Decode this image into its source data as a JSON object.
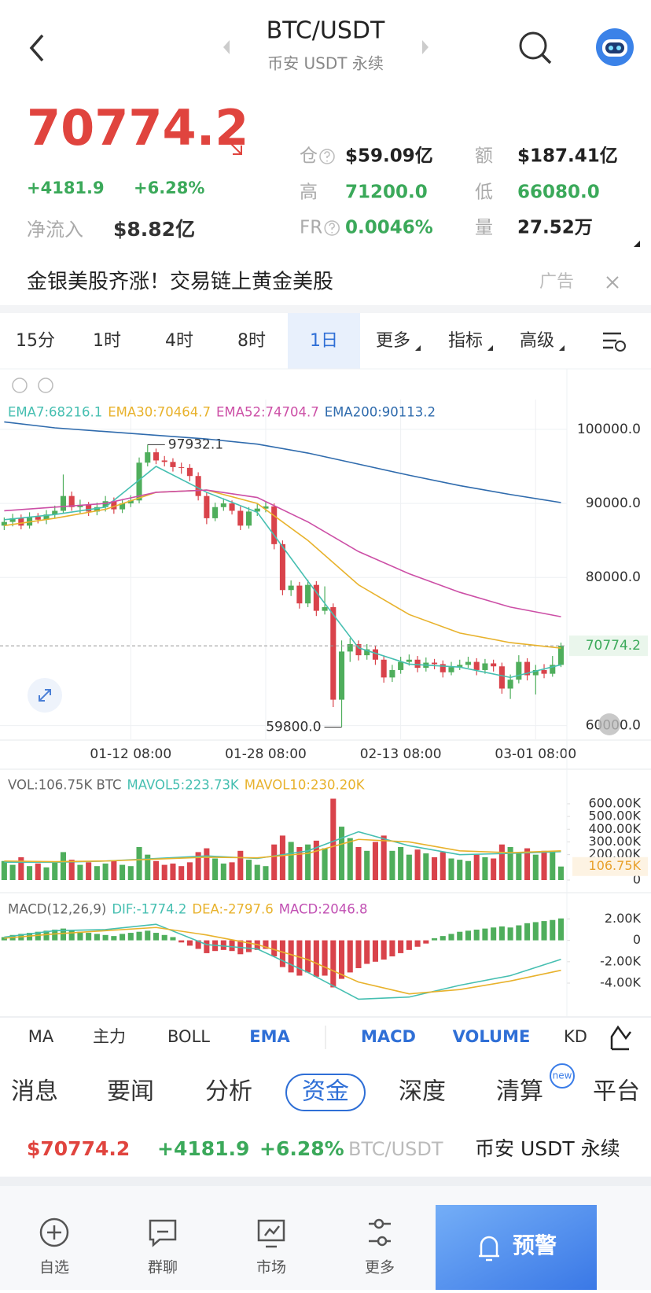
{
  "header": {
    "title": "BTC/USDT",
    "subtitle": "币安 USDT 永续"
  },
  "ticker": {
    "price": "70774.2",
    "change": "+4181.9",
    "change_pct": "+6.28%",
    "netflow_label": "净流入",
    "netflow": "$8.82亿",
    "stats": [
      {
        "label": "仓",
        "value": "$59.09亿",
        "color": "#222",
        "info_icon": true
      },
      {
        "label": "额",
        "value": "$187.41亿",
        "color": "#222"
      },
      {
        "label": "高",
        "value": "71200.0",
        "color": "#3ba95a"
      },
      {
        "label": "低",
        "value": "66080.0",
        "color": "#3ba95a"
      },
      {
        "label": "FR",
        "value": "0.0046%",
        "color": "#3ba95a",
        "info_icon": true
      },
      {
        "label": "量",
        "value": "27.52万",
        "color": "#222"
      }
    ]
  },
  "banner": {
    "text": "金银美股齐涨！交易链上黄金美股",
    "tag": "广告"
  },
  "intervals": [
    "15分",
    "1时",
    "4时",
    "8时",
    "1日",
    "更多",
    "指标",
    "高级"
  ],
  "active_interval": 4,
  "chart_data": [
    {
      "type": "candlestick",
      "up_color": "#4fae5c",
      "down_color": "#d9434b",
      "xlim": [
        -0.5,
        66.7
      ],
      "ylim": [
        58150,
        101900
      ],
      "yticks": [
        {
          "value": 100000,
          "label": "100000.0"
        },
        {
          "value": 90000,
          "label": "90000.0"
        },
        {
          "value": 80000,
          "label": "80000.0"
        },
        {
          "value": 60000,
          "label": "60000.0"
        }
      ],
      "xticks": [
        {
          "value": 15,
          "label": "01-12 08:00"
        },
        {
          "value": 31,
          "label": "01-28 08:00"
        },
        {
          "value": 47,
          "label": "02-13 08:00"
        },
        {
          "value": 63,
          "label": "03-01 08:00"
        }
      ],
      "last_price": 70774.2,
      "last_price_label": "70774.2",
      "annotations": [
        {
          "index": 17,
          "value": 97932.1,
          "label": "97932.1"
        },
        {
          "index": 40,
          "value": 59800,
          "label": "59800.0"
        }
      ],
      "candles": [
        [
          87000,
          88100,
          86400,
          87500
        ],
        [
          87500,
          88600,
          86900,
          88000
        ],
        [
          88000,
          88500,
          86500,
          87000
        ],
        [
          87000,
          88800,
          86600,
          88200
        ],
        [
          88200,
          88700,
          87300,
          87800
        ],
        [
          87800,
          89100,
          87200,
          88500
        ],
        [
          88500,
          89700,
          88000,
          89000
        ],
        [
          89000,
          93900,
          88600,
          91000
        ],
        [
          91000,
          91600,
          89000,
          89500
        ],
        [
          89500,
          90500,
          88700,
          89800
        ],
        [
          89800,
          90200,
          88300,
          88900
        ],
        [
          88900,
          90100,
          88400,
          89500
        ],
        [
          89500,
          91000,
          88900,
          90300
        ],
        [
          90300,
          90800,
          88600,
          89200
        ],
        [
          89200,
          90600,
          88700,
          90000
        ],
        [
          90000,
          91100,
          89500,
          90400
        ],
        [
          90400,
          96200,
          90000,
          95500
        ],
        [
          95500,
          97932.1,
          95000,
          96900
        ],
        [
          96900,
          97400,
          95300,
          95800
        ],
        [
          95800,
          96400,
          95000,
          95600
        ],
        [
          95600,
          96100,
          94300,
          94900
        ],
        [
          94900,
          95500,
          94000,
          94800
        ],
        [
          94800,
          95300,
          93000,
          93700
        ],
        [
          93700,
          94200,
          90400,
          91000
        ],
        [
          91000,
          91500,
          87200,
          88000
        ],
        [
          88000,
          90100,
          87600,
          89500
        ],
        [
          89500,
          90700,
          89000,
          90000
        ],
        [
          90000,
          90400,
          88500,
          89000
        ],
        [
          89000,
          89600,
          86400,
          87000
        ],
        [
          87000,
          89500,
          86600,
          88900
        ],
        [
          88900,
          90000,
          88300,
          89300
        ],
        [
          89300,
          90200,
          88800,
          89600
        ],
        [
          89600,
          90000,
          83800,
          84500
        ],
        [
          84500,
          85000,
          77600,
          78300
        ],
        [
          78300,
          79600,
          77500,
          78900
        ],
        [
          78900,
          79400,
          75800,
          76500
        ],
        [
          76500,
          79700,
          76000,
          79000
        ],
        [
          79000,
          79500,
          74800,
          75500
        ],
        [
          75500,
          78800,
          75000,
          76000
        ],
        [
          76000,
          76500,
          62500,
          63500
        ],
        [
          63500,
          71500,
          59800,
          70000
        ],
        [
          70000,
          71800,
          68600,
          71000
        ],
        [
          71000,
          71500,
          68800,
          69500
        ],
        [
          69500,
          71000,
          68900,
          70300
        ],
        [
          70300,
          70800,
          68200,
          68900
        ],
        [
          68900,
          69400,
          65800,
          66500
        ],
        [
          66500,
          68200,
          65900,
          67500
        ],
        [
          67500,
          69300,
          67000,
          68600
        ],
        [
          68600,
          69600,
          68100,
          68900
        ],
        [
          68900,
          69400,
          67200,
          67800
        ],
        [
          67800,
          69200,
          67300,
          68500
        ],
        [
          68500,
          69000,
          67600,
          68300
        ],
        [
          68300,
          68800,
          66500,
          67200
        ],
        [
          67200,
          68600,
          66800,
          67900
        ],
        [
          67900,
          68900,
          67500,
          68200
        ],
        [
          68200,
          69300,
          67800,
          68600
        ],
        [
          68600,
          69100,
          66800,
          67500
        ],
        [
          67500,
          69000,
          67000,
          68400
        ],
        [
          68400,
          68900,
          67300,
          68000
        ],
        [
          68000,
          68500,
          64300,
          65000
        ],
        [
          65000,
          66900,
          63600,
          66200
        ],
        [
          66200,
          69500,
          65700,
          68600
        ],
        [
          68600,
          69100,
          66100,
          66800
        ],
        [
          66800,
          68200,
          64200,
          67500
        ],
        [
          67500,
          68300,
          66400,
          67000
        ],
        [
          67000,
          69400,
          66600,
          68200
        ],
        [
          68200,
          71200,
          67900,
          70774.2
        ]
      ],
      "series": [
        {
          "name": "EMA7:68216.1",
          "color": "#46bfb1",
          "x": [
            0,
            6,
            12,
            18,
            24,
            30,
            36,
            42,
            48,
            54,
            60,
            66
          ],
          "values": [
            87800,
            88500,
            89500,
            95000,
            91500,
            88800,
            79500,
            70500,
            68300,
            67900,
            66500,
            68216.1
          ]
        },
        {
          "name": "EMA30:70464.7",
          "color": "#e8b22c",
          "x": [
            0,
            6,
            12,
            18,
            24,
            30,
            36,
            42,
            48,
            54,
            60,
            66
          ],
          "values": [
            87000,
            88000,
            89200,
            91500,
            91800,
            90000,
            85000,
            79000,
            75000,
            72500,
            71200,
            70464.7
          ]
        },
        {
          "name": "EMA52:74704.7",
          "color": "#cc4fa6",
          "x": [
            0,
            6,
            12,
            18,
            24,
            30,
            36,
            42,
            48,
            54,
            60,
            66
          ],
          "values": [
            89000,
            89500,
            90000,
            91500,
            91800,
            90800,
            87500,
            83500,
            80500,
            78000,
            76000,
            74704.7
          ]
        },
        {
          "name": "EMA200:90113.2",
          "color": "#2f6bad",
          "x": [
            0,
            6,
            12,
            18,
            24,
            30,
            36,
            42,
            48,
            54,
            60,
            66
          ],
          "values": [
            101000,
            100200,
            99700,
            99200,
            98700,
            98000,
            96800,
            95300,
            93800,
            92400,
            91200,
            90113.2
          ]
        }
      ]
    },
    {
      "type": "bar",
      "title": "VOL:106.75K BTC",
      "xlim": [
        -0.5,
        66.7
      ],
      "ylim": [
        0,
        674000
      ],
      "yticks": [
        0,
        {
          "value": 200000,
          "label": "200.00K"
        },
        {
          "value": 300000,
          "label": "300.00K"
        },
        {
          "value": 400000,
          "label": "400.00K"
        },
        {
          "value": 500000,
          "label": "500.00K"
        },
        {
          "value": 600000,
          "label": "600.00K"
        }
      ],
      "last_value_label": "106.75K",
      "values": [
        150000,
        120000,
        180000,
        110000,
        130000,
        100000,
        140000,
        220000,
        160000,
        120000,
        140000,
        110000,
        130000,
        150000,
        120000,
        110000,
        260000,
        200000,
        150000,
        120000,
        130000,
        110000,
        140000,
        220000,
        250000,
        170000,
        130000,
        140000,
        230000,
        160000,
        120000,
        110000,
        280000,
        350000,
        300000,
        260000,
        280000,
        310000,
        250000,
        640000,
        420000,
        330000,
        260000,
        230000,
        300000,
        350000,
        230000,
        260000,
        200000,
        240000,
        210000,
        180000,
        220000,
        170000,
        160000,
        150000,
        200000,
        180000,
        170000,
        280000,
        260000,
        220000,
        250000,
        200000,
        230000,
        220000,
        106750
      ],
      "series": [
        {
          "name": "MAVOL5:223.73K",
          "color": "#46bfb1",
          "x": [
            0,
            6,
            12,
            18,
            24,
            30,
            36,
            42,
            48,
            54,
            60,
            66
          ],
          "values": [
            140000,
            140000,
            150000,
            170000,
            190000,
            170000,
            230000,
            380000,
            270000,
            200000,
            210000,
            223730
          ]
        },
        {
          "name": "MAVOL10:230.20K",
          "color": "#e8b22c",
          "x": [
            0,
            6,
            12,
            18,
            24,
            30,
            36,
            42,
            48,
            54,
            60,
            66
          ],
          "values": [
            150000,
            145000,
            150000,
            165000,
            180000,
            175000,
            210000,
            320000,
            300000,
            230000,
            215000,
            230200
          ]
        }
      ]
    },
    {
      "type": "bar",
      "title": "MACD(12,26,9)",
      "name": "MACD:2046.8",
      "color": "#c150b3",
      "up_color": "#4fae5c",
      "down_color": "#d9434b",
      "xlim": [
        -0.5,
        66.7
      ],
      "ylim": [
        -6570,
        3350
      ],
      "yticks": [
        {
          "value": 2000,
          "label": "2.00K"
        },
        0,
        {
          "value": -2000,
          "label": "-2.00K"
        },
        {
          "value": -4000,
          "label": "-4.00K"
        }
      ],
      "values": [
        300,
        500,
        600,
        700,
        800,
        900,
        1000,
        1100,
        900,
        800,
        700,
        600,
        500,
        400,
        600,
        700,
        800,
        900,
        700,
        500,
        300,
        -200,
        -500,
        -800,
        -1200,
        -1000,
        -900,
        -1000,
        -1300,
        -1100,
        -900,
        -800,
        -1500,
        -2500,
        -3000,
        -3300,
        -3000,
        -3400,
        -3300,
        -4400,
        -3600,
        -3000,
        -2600,
        -2200,
        -2000,
        -1800,
        -1500,
        -1200,
        -900,
        -600,
        -300,
        200,
        400,
        600,
        800,
        900,
        1000,
        1100,
        1200,
        1300,
        1200,
        1400,
        1600,
        1700,
        1800,
        1900,
        2046.8
      ],
      "series": [
        {
          "name": "DIF:-1774.2",
          "color": "#46bfb1",
          "x": [
            0,
            6,
            12,
            18,
            24,
            30,
            36,
            42,
            48,
            54,
            60,
            66
          ],
          "values": [
            300,
            900,
            1000,
            1500,
            -400,
            -800,
            -3000,
            -5500,
            -5300,
            -4200,
            -3300,
            -1774.2
          ]
        },
        {
          "name": "DEA:-2797.6",
          "color": "#e8b22c",
          "x": [
            0,
            6,
            12,
            18,
            24,
            30,
            36,
            42,
            48,
            54,
            60,
            66
          ],
          "values": [
            200,
            600,
            900,
            1200,
            500,
            -400,
            -1800,
            -3900,
            -5000,
            -4600,
            -3800,
            -2797.6
          ]
        }
      ]
    }
  ],
  "indicator_tabs": [
    "MA",
    "主力",
    "BOLL",
    "EMA",
    "MACD",
    "VOLUME",
    "KD"
  ],
  "active_indicators": [
    3,
    4,
    5
  ],
  "news_tabs": [
    "消息",
    "要闻",
    "分析",
    "资金",
    "深度",
    "清算",
    "平台"
  ],
  "active_news_tab": 3,
  "news_badge": "new",
  "footer_ticker": {
    "price": "$70774.2",
    "change": "+4181.9",
    "change_pct": "+6.28%",
    "pair": "BTC/USDT",
    "exchange": "币安 USDT 永续"
  },
  "nav": [
    "自选",
    "群聊",
    "市场",
    "更多"
  ],
  "alert": "预警"
}
